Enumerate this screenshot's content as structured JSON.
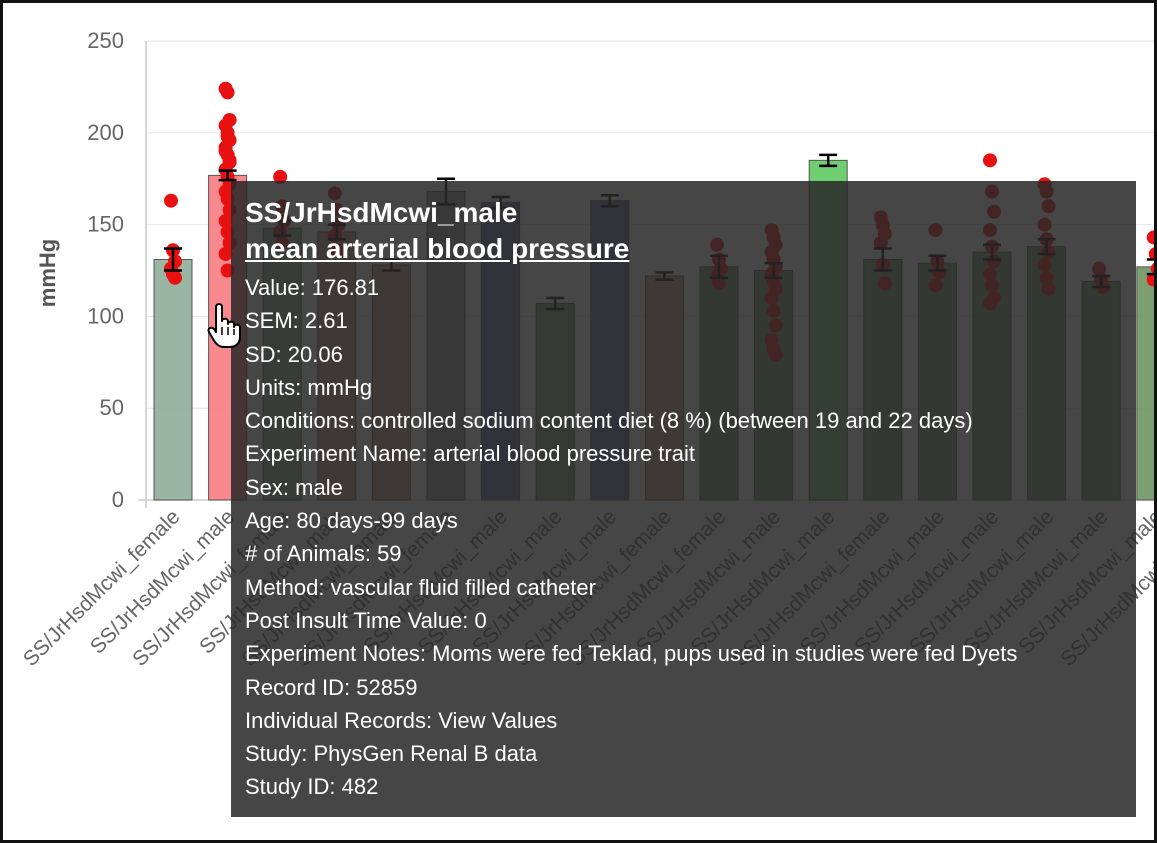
{
  "chart_data": {
    "type": "bar",
    "ylabel": "mmHg",
    "ylim": [
      0,
      250
    ],
    "yticks": [
      0,
      50,
      100,
      150,
      200,
      250
    ],
    "grid": true,
    "categories": [
      "SS/JrHsdMcwi_female",
      "SS/JrHsdMcwi_male",
      "SS/JrHsdMcwi_female",
      "SS/JrHsdMcwi_male",
      "SS/JrHsdMcwi_female",
      "SS/JrHsdMcwi_female",
      "SS/JrHsdMcwi_male",
      "SS/JrHsdMcwi_male",
      "SS/JrHsdMcwi_male",
      "SS/JrHsdMcwi_female",
      "SS/JrHsdMcwi_female",
      "SS/JrHsdMcwi_male",
      "SS/JrHsdMcwi_male",
      "SS/JrHsdMcwi_female",
      "SS/JrHsdMcwi_male",
      "SS/JrHsdMcwi_male",
      "SS/JrHsdMcwi_male",
      "SS/JrHsdMcwi_male",
      "SS/JrHsdMcwi_male",
      "SS/JrHsdMcwi_female"
    ],
    "values": [
      131,
      176.81,
      148,
      146,
      128,
      168,
      162,
      107,
      163,
      122,
      127,
      125,
      185,
      131,
      129,
      135,
      138,
      119,
      127,
      127
    ],
    "errors": [
      6,
      2.61,
      4,
      4,
      3,
      7,
      3,
      3,
      3,
      2,
      6,
      4,
      3,
      6,
      4,
      4,
      4,
      3,
      4,
      4
    ],
    "colors": [
      "#8fad98",
      "#f77c82",
      "#8fad98",
      "#c49a78",
      "#c49a78",
      "#8f8f8f",
      "#5c5c9e",
      "#7a9960",
      "#5c5c9e",
      "#c49a78",
      "#6f9460",
      "#6f9460",
      "#5fc95f",
      "#6f9460",
      "#6f9460",
      "#6f9460",
      "#6f9460",
      "#6f9460",
      "#6f9460",
      "#b8e8a0"
    ],
    "points": [
      [
        163,
        136,
        130,
        126,
        123,
        121
      ],
      [
        224,
        222,
        207,
        204,
        200,
        196,
        192,
        188,
        184,
        180,
        176,
        172,
        168,
        164,
        158,
        152,
        146,
        140,
        134,
        125,
        185,
        190,
        198
      ],
      [
        176,
        160,
        152,
        146,
        140
      ],
      [
        167,
        158,
        150,
        144,
        136
      ],
      [],
      [],
      [],
      [],
      [],
      [],
      [
        139,
        131,
        126,
        122,
        118
      ],
      [
        147,
        143,
        139,
        135,
        131,
        127,
        123,
        119,
        115,
        110,
        103,
        95,
        87,
        82,
        79
      ],
      [],
      [
        154,
        150,
        145,
        140,
        128,
        118
      ],
      [
        147,
        130,
        124,
        117
      ],
      [
        185,
        168,
        157,
        147,
        138,
        130,
        123,
        117,
        110,
        107
      ],
      [
        172,
        168,
        160,
        150,
        142,
        135,
        128,
        121,
        115
      ],
      [
        126,
        120,
        116
      ],
      [
        143,
        134,
        126,
        120
      ],
      []
    ]
  },
  "tooltip": {
    "title": "SS/JrHsdMcwi_male",
    "measure": "mean arterial blood pressure",
    "lines": [
      "Value: 176.81",
      "SEM: 2.61",
      "SD: 20.06",
      "Units: mmHg",
      "Conditions: controlled sodium content diet (8 %) (between 19 and 22 days)",
      "Experiment Name: arterial blood pressure trait",
      "Sex: male",
      "Age: 80 days-99 days",
      "# of Animals: 59",
      "Method: vascular fluid filled catheter",
      "Post Insult Time Value: 0",
      "Experiment Notes: Moms were fed Teklad, pups used in studies were fed Dyets",
      "Record ID: 52859",
      "Individual Records: View Values",
      "Study: PhysGen Renal B data",
      "Study ID: 482"
    ]
  }
}
